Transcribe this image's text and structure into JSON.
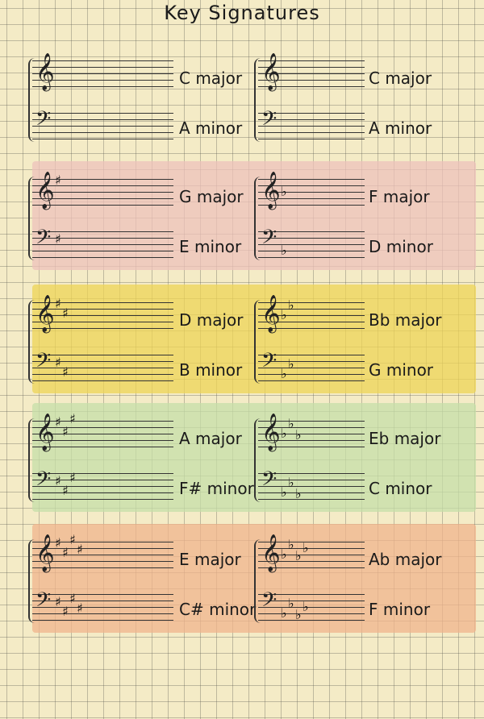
{
  "title": "Key Signatures",
  "colors": {
    "paper": "#f4ebc6",
    "row2": "#eec1bb",
    "row3": "#eed455",
    "row4": "#c6dfa8",
    "row5": "#f0b48c"
  },
  "rows": [
    {
      "color": "",
      "left": {
        "major": "C major",
        "minor": "A minor",
        "accidentals": 0,
        "type": "sharp"
      },
      "right": {
        "major": "C major",
        "minor": "A minor",
        "accidentals": 0,
        "type": "flat"
      }
    },
    {
      "color": "#eec1bb",
      "left": {
        "major": "G major",
        "minor": "E minor",
        "accidentals": 1,
        "type": "sharp"
      },
      "right": {
        "major": "F major",
        "minor": "D minor",
        "accidentals": 1,
        "type": "flat"
      }
    },
    {
      "color": "#eed455",
      "left": {
        "major": "D major",
        "minor": "B minor",
        "accidentals": 2,
        "type": "sharp"
      },
      "right": {
        "major": "Bb major",
        "minor": "G minor",
        "accidentals": 2,
        "type": "flat"
      }
    },
    {
      "color": "#c6dfa8",
      "left": {
        "major": "A major",
        "minor": "F# minor",
        "accidentals": 3,
        "type": "sharp"
      },
      "right": {
        "major": "Eb major",
        "minor": "C minor",
        "accidentals": 3,
        "type": "flat"
      }
    },
    {
      "color": "#f0b48c",
      "left": {
        "major": "E major",
        "minor": "C# minor",
        "accidentals": 4,
        "type": "sharp"
      },
      "right": {
        "major": "Ab major",
        "minor": "F minor",
        "accidentals": 4,
        "type": "flat"
      }
    }
  ]
}
